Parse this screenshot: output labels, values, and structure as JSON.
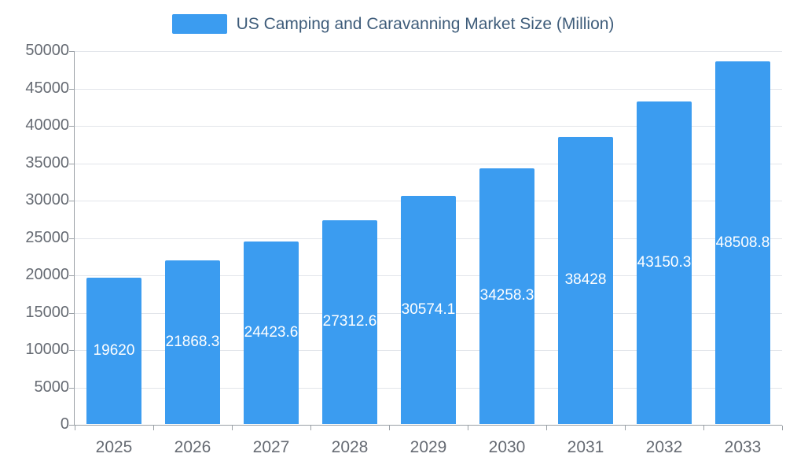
{
  "legend": {
    "label": "US Camping and Caravanning Market Size (Million)",
    "swatch_color": "#3b9cf0"
  },
  "chart_data": {
    "type": "bar",
    "title": "US Camping and Caravanning Market Size (Million)",
    "categories": [
      "2025",
      "2026",
      "2027",
      "2028",
      "2029",
      "2030",
      "2031",
      "2032",
      "2033"
    ],
    "values": [
      19620,
      21868.3,
      24423.6,
      27312.6,
      30574.1,
      34258.3,
      38428,
      43150.3,
      48508.8
    ],
    "value_labels": [
      "19620",
      "21868.3",
      "24423.6",
      "27312.6",
      "30574.1",
      "34258.3",
      "38428",
      "43150.3",
      "48508.8"
    ],
    "xlabel": "",
    "ylabel": "",
    "ylim": [
      0,
      50000
    ],
    "ytick_step": 5000,
    "ytick_labels": [
      "0",
      "5000",
      "10000",
      "15000",
      "20000",
      "25000",
      "30000",
      "35000",
      "40000",
      "45000",
      "50000"
    ],
    "grid": true,
    "legend_position": "top-center",
    "bar_color": "#3b9cf0",
    "value_label_color": "#ffffff",
    "axis_text_color": "#666b73",
    "legend_text_color": "#3e5c7a",
    "gridline_color": "#e2e5ea",
    "axis_line_color": "#9aa0a6"
  }
}
